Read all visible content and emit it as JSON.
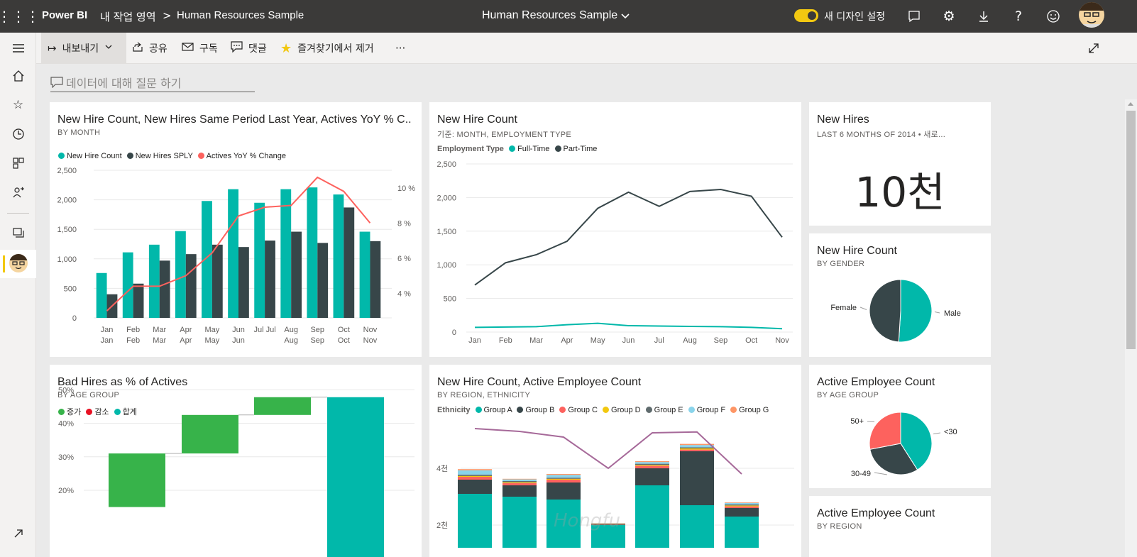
{
  "app": {
    "product": "Power BI",
    "workspace": "내 작업 영역",
    "breadcrumb_sep": ">",
    "report_name": "Human Resources Sample",
    "center_title": "Human Resources Sample",
    "design_toggle_label": "새 디자인 설정",
    "accent": "#f2c811"
  },
  "commands": {
    "export": "내보내기",
    "share": "공유",
    "subscribe": "구독",
    "comment": "댓글",
    "unfavorite": "즐겨찾기에서 제거",
    "more": "···"
  },
  "qa": {
    "placeholder": "데이터에 대해 질문 하기"
  },
  "watermark": "Hongfu",
  "tiles": {
    "hires_combo": {
      "title": "New Hire Count, New Hires Same Period Last Year, Actives YoY % C...",
      "subtitle": "BY MONTH",
      "legend": [
        "New Hire Count",
        "New Hires SPLY",
        "Actives YoY % Change"
      ]
    },
    "hires_line": {
      "title": "New Hire Count",
      "subtitle": "기준: MONTH, EMPLOYMENT TYPE",
      "legend_title": "Employment Type",
      "legend": [
        "Full-Time",
        "Part-Time"
      ]
    },
    "new_hires_card": {
      "title": "New Hires",
      "subtitle": "LAST 6 MONTHS OF 2014  •  새로...",
      "value": "10천"
    },
    "gender_pie": {
      "title": "New Hire Count",
      "subtitle": "BY GENDER",
      "labels": [
        "Female",
        "Male"
      ]
    },
    "bad_hires": {
      "title": "Bad Hires as % of Actives",
      "subtitle": "BY AGE GROUP",
      "legend": [
        "증가",
        "감소",
        "합계"
      ]
    },
    "region_chart": {
      "title": "New Hire Count, Active Employee Count",
      "subtitle": "BY REGION, ETHNICITY",
      "legend_title": "Ethnicity",
      "legend": [
        "Group A",
        "Group B",
        "Group C",
        "Group D",
        "Group E",
        "Group F",
        "Group G"
      ]
    },
    "age_pie": {
      "title": "Active Employee Count",
      "subtitle": "BY AGE GROUP",
      "labels": [
        "50+",
        "<30",
        "30-49"
      ]
    },
    "region_card": {
      "title": "Active Employee Count",
      "subtitle": "BY REGION"
    }
  },
  "chart_data": [
    {
      "id": "hires_combo",
      "type": "bar",
      "categories": [
        "Jan",
        "Feb",
        "Mar",
        "Apr",
        "May",
        "Jun",
        "Jul",
        "Aug",
        "Sep",
        "Oct",
        "Nov"
      ],
      "x_tick_labels": [
        [
          "Jan",
          "Jan"
        ],
        [
          "Feb",
          "Feb"
        ],
        [
          "Mar",
          "Mar"
        ],
        [
          "Apr",
          "Apr"
        ],
        [
          "May",
          "May"
        ],
        [
          "Jun",
          "Jun"
        ],
        [
          "Jul Jul",
          ""
        ],
        [
          "Aug",
          "Aug"
        ],
        [
          "Sep",
          "Sep"
        ],
        [
          "Oct",
          "Oct"
        ],
        [
          "Nov",
          "Nov"
        ]
      ],
      "series": [
        {
          "name": "New Hire Count",
          "kind": "bar",
          "color": "#01b8aa",
          "values": [
            760,
            1110,
            1240,
            1470,
            1980,
            2180,
            1950,
            2180,
            2210,
            2090,
            1460
          ]
        },
        {
          "name": "New Hires SPLY",
          "kind": "bar",
          "color": "#374649",
          "values": [
            400,
            580,
            970,
            1080,
            1240,
            1200,
            1310,
            1460,
            1270,
            1870,
            1300
          ]
        },
        {
          "name": "Actives YoY % Change",
          "kind": "line",
          "axis": "right",
          "color": "#fd625e",
          "values": [
            3.0,
            4.4,
            4.4,
            5.0,
            6.3,
            8.4,
            8.9,
            9.0,
            10.6,
            9.8,
            8.0
          ]
        }
      ],
      "ylim": [
        0,
        2500
      ],
      "yticks": [
        "0",
        "500",
        "1,000",
        "1,500",
        "2,000",
        "2,500"
      ],
      "y2lim": [
        2.6,
        11
      ],
      "y2ticks": [
        {
          "v": 4,
          "label": "4 %"
        },
        {
          "v": 6,
          "label": "6 %"
        },
        {
          "v": 8,
          "label": "8 %"
        },
        {
          "v": 10,
          "label": "10 %"
        }
      ]
    },
    {
      "id": "hires_line",
      "type": "line",
      "categories": [
        "Jan",
        "Feb",
        "Mar",
        "Apr",
        "May",
        "Jun",
        "Jul",
        "Aug",
        "Sep",
        "Oct",
        "Nov"
      ],
      "series": [
        {
          "name": "Full-Time",
          "color": "#01b8aa",
          "values": [
            70,
            75,
            80,
            110,
            130,
            95,
            90,
            85,
            80,
            70,
            50
          ]
        },
        {
          "name": "Part-Time",
          "color": "#374649",
          "values": [
            700,
            1030,
            1150,
            1350,
            1840,
            2080,
            1870,
            2090,
            2120,
            2020,
            1410
          ]
        }
      ],
      "ylim": [
        0,
        2500
      ],
      "yticks": [
        "0",
        "500",
        "1,000",
        "1,500",
        "2,000",
        "2,500"
      ]
    },
    {
      "id": "gender_pie",
      "type": "pie",
      "slices": [
        {
          "label": "Male",
          "value": 51,
          "color": "#01b8aa"
        },
        {
          "label": "Female",
          "value": 49,
          "color": "#374649"
        }
      ]
    },
    {
      "id": "bad_hires",
      "type": "bar",
      "subtype": "waterfall",
      "steps": [
        {
          "kind": "increase",
          "from": 15,
          "to": 31,
          "color": "#37b34a"
        },
        {
          "kind": "increase",
          "from": 31,
          "to": 42.5,
          "color": "#37b34a"
        },
        {
          "kind": "increase",
          "from": 42.5,
          "to": 47.8,
          "color": "#37b34a"
        },
        {
          "kind": "total",
          "from": 0,
          "to": 47.8,
          "color": "#01b8aa"
        }
      ],
      "ylim": [
        17,
        52
      ],
      "yticks": [
        {
          "v": 20,
          "label": "20%"
        },
        {
          "v": 30,
          "label": "30%"
        },
        {
          "v": 40,
          "label": "40%"
        },
        {
          "v": 50,
          "label": "50%"
        }
      ],
      "legend_colors": [
        "#37b34a",
        "#e81123",
        "#01b8aa"
      ]
    },
    {
      "id": "region_chart",
      "type": "bar",
      "subtype": "stacked-combo",
      "ylim": [
        1200,
        5600
      ],
      "yticks": [
        {
          "v": 2000,
          "label": "2천"
        },
        {
          "v": 4000,
          "label": "4천"
        }
      ],
      "group_colors": [
        "#01b8aa",
        "#374649",
        "#fd625e",
        "#f2c80f",
        "#5f6b6d",
        "#8ad4eb",
        "#fe9666"
      ],
      "stacks": [
        [
          1900,
          500,
          100,
          30,
          50,
          150,
          40
        ],
        [
          1800,
          400,
          80,
          30,
          40,
          60,
          20
        ],
        [
          1700,
          600,
          100,
          30,
          40,
          100,
          30
        ],
        [
          800,
          20,
          10,
          10,
          10,
          10,
          10
        ],
        [
          2200,
          600,
          90,
          30,
          40,
          60,
          30
        ],
        [
          1500,
          1900,
          60,
          40,
          40,
          80,
          40
        ],
        [
          1100,
          300,
          60,
          30,
          40,
          50,
          20
        ]
      ],
      "line": {
        "color": "#a66999",
        "values": [
          5400,
          5300,
          5100,
          4000,
          5250,
          5280,
          3800
        ]
      }
    },
    {
      "id": "age_pie",
      "type": "pie",
      "slices": [
        {
          "label": "<30",
          "value": 41,
          "color": "#01b8aa"
        },
        {
          "label": "30-49",
          "value": 31,
          "color": "#374649"
        },
        {
          "label": "50+",
          "value": 28,
          "color": "#fd625e"
        }
      ]
    }
  ]
}
